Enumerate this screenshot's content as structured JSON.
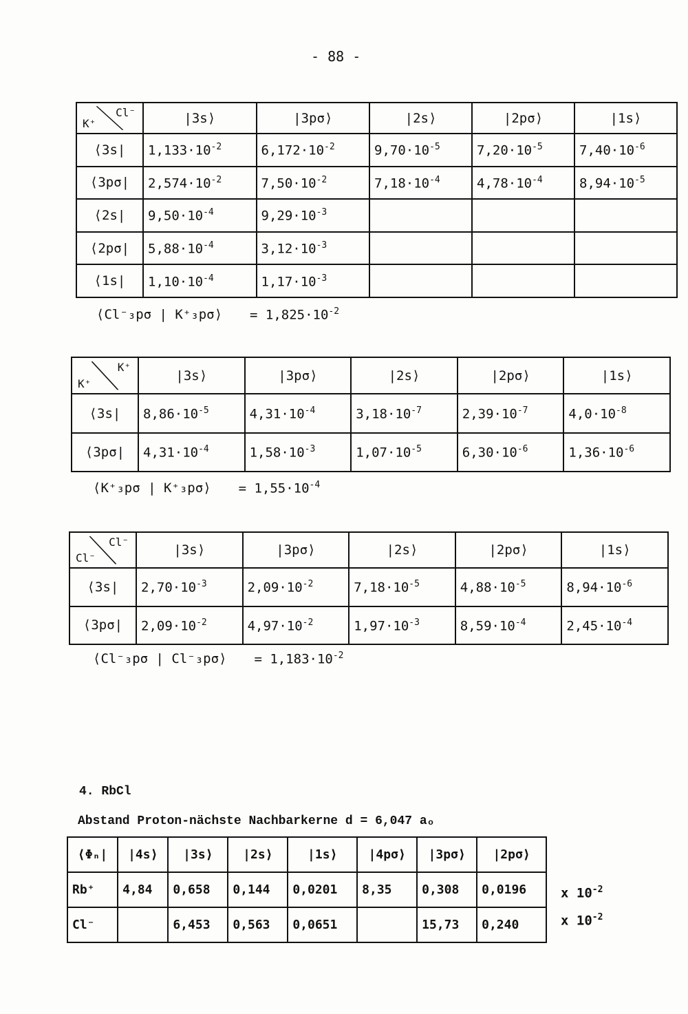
{
  "page_number": "- 88 -",
  "tables": [
    {
      "corner_top": "Cl⁻",
      "corner_bottom": "K⁺",
      "columns": [
        "|3s⟩",
        "|3pσ⟩",
        "|2s⟩",
        "|2pσ⟩",
        "|1s⟩"
      ],
      "rows": [
        {
          "label": "⟨3s|",
          "cells": [
            {
              "b": "1,133·10",
              "e": "-2"
            },
            {
              "b": "6,172·10",
              "e": "-2"
            },
            {
              "b": "9,70·10",
              "e": "-5"
            },
            {
              "b": "7,20·10",
              "e": "-5"
            },
            {
              "b": "7,40·10",
              "e": "-6"
            }
          ]
        },
        {
          "label": "⟨3pσ|",
          "cells": [
            {
              "b": "2,574·10",
              "e": "-2"
            },
            {
              "b": "7,50·10",
              "e": "-2"
            },
            {
              "b": "7,18·10",
              "e": "-4"
            },
            {
              "b": "4,78·10",
              "e": "-4"
            },
            {
              "b": "8,94·10",
              "e": "-5"
            }
          ]
        },
        {
          "label": "⟨2s|",
          "cells": [
            {
              "b": "9,50·10",
              "e": "-4"
            },
            {
              "b": "9,29·10",
              "e": "-3"
            },
            {
              "b": "",
              "e": ""
            },
            {
              "b": "",
              "e": ""
            },
            {
              "b": "",
              "e": ""
            }
          ]
        },
        {
          "label": "⟨2pσ|",
          "cells": [
            {
              "b": "5,88·10",
              "e": "-4"
            },
            {
              "b": "3,12·10",
              "e": "-3"
            },
            {
              "b": "",
              "e": ""
            },
            {
              "b": "",
              "e": ""
            },
            {
              "b": "",
              "e": ""
            }
          ]
        },
        {
          "label": "⟨1s|",
          "cells": [
            {
              "b": "1,10·10",
              "e": "-4"
            },
            {
              "b": "1,17·10",
              "e": "-3"
            },
            {
              "b": "",
              "e": ""
            },
            {
              "b": "",
              "e": ""
            },
            {
              "b": "",
              "e": ""
            }
          ]
        }
      ],
      "note": {
        "label": "⟨Cl⁻₃pσ | K⁺₃pσ⟩",
        "eq": "= 1,825·10",
        "exp": "-2"
      }
    },
    {
      "corner_top": "K⁺",
      "corner_bottom": "K⁺",
      "columns": [
        "|3s⟩",
        "|3pσ⟩",
        "|2s⟩",
        "|2pσ⟩",
        "|1s⟩"
      ],
      "rows": [
        {
          "label": "⟨3s|",
          "cells": [
            {
              "b": "8,86·10",
              "e": "-5"
            },
            {
              "b": "4,31·10",
              "e": "-4"
            },
            {
              "b": "3,18·10",
              "e": "-7"
            },
            {
              "b": "2,39·10",
              "e": "-7"
            },
            {
              "b": "4,0·10",
              "e": "-8"
            }
          ]
        },
        {
          "label": "⟨3pσ|",
          "cells": [
            {
              "b": "4,31·10",
              "e": "-4"
            },
            {
              "b": "1,58·10",
              "e": "-3"
            },
            {
              "b": "1,07·10",
              "e": "-5"
            },
            {
              "b": "6,30·10",
              "e": "-6"
            },
            {
              "b": "1,36·10",
              "e": "-6"
            }
          ]
        }
      ],
      "note": {
        "label": "⟨K⁺₃pσ | K⁺₃pσ⟩",
        "eq": "= 1,55·10",
        "exp": "-4"
      }
    },
    {
      "corner_top": "Cl⁻",
      "corner_bottom": "Cl⁻",
      "columns": [
        "|3s⟩",
        "|3pσ⟩",
        "|2s⟩",
        "|2pσ⟩",
        "|1s⟩"
      ],
      "rows": [
        {
          "label": "⟨3s|",
          "cells": [
            {
              "b": "2,70·10",
              "e": "-3"
            },
            {
              "b": "2,09·10",
              "e": "-2"
            },
            {
              "b": "7,18·10",
              "e": "-5"
            },
            {
              "b": "4,88·10",
              "e": "-5"
            },
            {
              "b": "8,94·10",
              "e": "-6"
            }
          ]
        },
        {
          "label": "⟨3pσ|",
          "cells": [
            {
              "b": "2,09·10",
              "e": "-2"
            },
            {
              "b": "4,97·10",
              "e": "-2"
            },
            {
              "b": "1,97·10",
              "e": "-3"
            },
            {
              "b": "8,59·10",
              "e": "-4"
            },
            {
              "b": "2,45·10",
              "e": "-4"
            }
          ]
        }
      ],
      "note": {
        "label": "⟨Cl⁻₃pσ | Cl⁻₃pσ⟩",
        "eq": "= 1,183·10",
        "exp": "-2"
      }
    }
  ],
  "rbcl": {
    "section": "4. RbCl",
    "subtitle": "Abstand Proton-nächste  Nachbarkerne    d = 6,047 aₒ",
    "columns": [
      "⟨Φₙ|",
      "|4s⟩",
      "|3s⟩",
      "|2s⟩",
      "|1s⟩",
      "|4pσ⟩",
      "|3pσ⟩",
      "|2pσ⟩"
    ],
    "rows": [
      {
        "label": "Rb⁺",
        "cells": [
          "4,84",
          "0,658",
          "0,144",
          "0,0201",
          "8,35",
          "0,308",
          "0,0196"
        ],
        "mult": "x 10",
        "exp": "-2"
      },
      {
        "label": "Cl⁻",
        "cells": [
          "",
          "6,453",
          "0,563",
          "0,0651",
          "",
          "15,73",
          "0,240"
        ],
        "mult": "x 10",
        "exp": "-2"
      }
    ]
  }
}
